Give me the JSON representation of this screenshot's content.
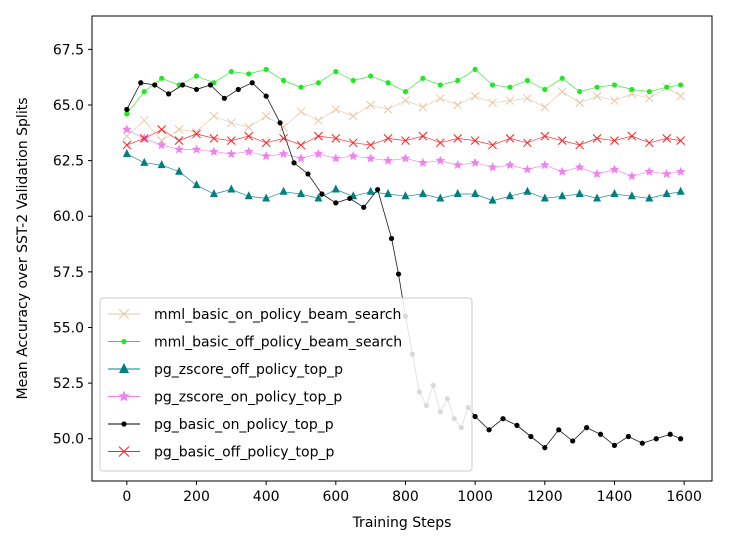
{
  "chart_data": {
    "type": "line",
    "title": "",
    "xlabel": "Training Steps",
    "ylabel": "Mean Accuracy over SST-2 Validation Splits",
    "xlim": [
      -100,
      1680
    ],
    "ylim": [
      48.1,
      69.0
    ],
    "xticks": [
      0,
      200,
      400,
      600,
      800,
      1000,
      1200,
      1400,
      1600
    ],
    "yticks": [
      50.0,
      52.5,
      55.0,
      57.5,
      60.0,
      62.5,
      65.0,
      67.5
    ],
    "ytick_labels": [
      "50.0",
      "52.5",
      "55.0",
      "57.5",
      "60.0",
      "62.5",
      "65.0",
      "67.5"
    ],
    "grid": false,
    "legend_position": "lower-left",
    "series": [
      {
        "name": "mml_basic_on_policy_beam_search",
        "color": "#e6c8a8",
        "marker": "x",
        "x": [
          0,
          50,
          100,
          150,
          200,
          250,
          300,
          350,
          400,
          450,
          500,
          550,
          600,
          650,
          700,
          750,
          800,
          850,
          900,
          950,
          1000,
          1050,
          1100,
          1150,
          1200,
          1250,
          1300,
          1350,
          1400,
          1450,
          1500,
          1550,
          1590
        ],
        "values": [
          63.6,
          64.3,
          63.4,
          63.9,
          63.8,
          64.5,
          64.2,
          64.0,
          64.5,
          64.0,
          64.7,
          64.3,
          64.8,
          64.5,
          65.0,
          64.8,
          65.2,
          64.9,
          65.3,
          65.0,
          65.4,
          65.1,
          65.2,
          65.3,
          64.9,
          65.6,
          65.1,
          65.4,
          65.2,
          65.5,
          65.3,
          65.8,
          65.4
        ]
      },
      {
        "name": "mml_basic_off_policy_beam_search",
        "color": "#22e822",
        "marker": "dot",
        "x": [
          0,
          50,
          100,
          150,
          200,
          250,
          300,
          350,
          400,
          450,
          500,
          550,
          600,
          650,
          700,
          750,
          800,
          850,
          900,
          950,
          1000,
          1050,
          1100,
          1150,
          1200,
          1250,
          1300,
          1350,
          1400,
          1450,
          1500,
          1550,
          1590
        ],
        "values": [
          64.6,
          65.6,
          66.2,
          65.9,
          66.3,
          66.0,
          66.5,
          66.4,
          66.6,
          66.1,
          65.8,
          66.0,
          66.5,
          66.1,
          66.3,
          66.0,
          65.6,
          66.2,
          65.9,
          66.1,
          66.6,
          65.9,
          65.8,
          66.1,
          65.7,
          66.2,
          65.6,
          65.8,
          65.9,
          65.7,
          65.6,
          65.8,
          65.9
        ]
      },
      {
        "name": "pg_zscore_off_policy_top_p",
        "color": "#008080",
        "marker": "triangle",
        "x": [
          0,
          50,
          100,
          150,
          200,
          250,
          300,
          350,
          400,
          450,
          500,
          550,
          600,
          650,
          700,
          750,
          800,
          850,
          900,
          950,
          1000,
          1050,
          1100,
          1150,
          1200,
          1250,
          1300,
          1350,
          1400,
          1450,
          1500,
          1550,
          1590
        ],
        "values": [
          62.8,
          62.4,
          62.3,
          62.0,
          61.4,
          61.0,
          61.2,
          60.9,
          60.8,
          61.1,
          61.0,
          60.8,
          61.2,
          60.9,
          61.1,
          61.0,
          60.9,
          61.0,
          60.8,
          61.0,
          61.0,
          60.7,
          60.9,
          61.1,
          60.8,
          60.9,
          61.0,
          60.8,
          61.0,
          60.9,
          60.8,
          61.0,
          61.1
        ]
      },
      {
        "name": "pg_zscore_on_policy_top_p",
        "color": "#ee82ee",
        "marker": "star",
        "x": [
          0,
          50,
          100,
          150,
          200,
          250,
          300,
          350,
          400,
          450,
          500,
          550,
          600,
          650,
          700,
          750,
          800,
          850,
          900,
          950,
          1000,
          1050,
          1100,
          1150,
          1200,
          1250,
          1300,
          1350,
          1400,
          1450,
          1500,
          1550,
          1590
        ],
        "values": [
          63.9,
          63.5,
          63.2,
          63.0,
          63.0,
          62.9,
          62.8,
          62.9,
          62.7,
          62.8,
          62.6,
          62.8,
          62.6,
          62.7,
          62.6,
          62.5,
          62.6,
          62.4,
          62.5,
          62.3,
          62.4,
          62.2,
          62.3,
          62.1,
          62.3,
          62.0,
          62.2,
          61.9,
          62.1,
          61.8,
          62.0,
          61.9,
          62.0
        ]
      },
      {
        "name": "pg_basic_on_policy_top_p",
        "color": "#000000",
        "marker": "dot",
        "x": [
          0,
          40,
          80,
          120,
          160,
          200,
          240,
          280,
          320,
          360,
          400,
          440,
          480,
          520,
          560,
          600,
          640,
          680,
          720,
          760,
          780,
          800,
          820,
          840,
          860,
          880,
          900,
          920,
          940,
          960,
          980,
          1000,
          1040,
          1080,
          1120,
          1160,
          1200,
          1240,
          1280,
          1320,
          1360,
          1400,
          1440,
          1480,
          1520,
          1560,
          1590
        ],
        "values": [
          64.8,
          66.0,
          65.9,
          65.5,
          65.9,
          65.7,
          65.9,
          65.3,
          65.7,
          66.0,
          65.4,
          64.2,
          62.4,
          61.9,
          61.0,
          60.6,
          60.8,
          60.4,
          61.2,
          59.0,
          57.4,
          55.5,
          53.8,
          52.1,
          51.5,
          52.4,
          51.2,
          51.8,
          50.9,
          50.5,
          51.4,
          51.0,
          50.4,
          50.9,
          50.6,
          50.1,
          49.6,
          50.4,
          49.9,
          50.5,
          50.2,
          49.7,
          50.1,
          49.8,
          50.0,
          50.2,
          50.0
        ]
      },
      {
        "name": "pg_basic_off_policy_top_p",
        "color": "#ff2020",
        "marker": "x",
        "x": [
          0,
          50,
          100,
          150,
          200,
          250,
          300,
          350,
          400,
          450,
          500,
          550,
          600,
          650,
          700,
          750,
          800,
          850,
          900,
          950,
          1000,
          1050,
          1100,
          1150,
          1200,
          1250,
          1300,
          1350,
          1400,
          1450,
          1500,
          1550,
          1590
        ],
        "values": [
          63.2,
          63.5,
          63.9,
          63.4,
          63.7,
          63.5,
          63.4,
          63.6,
          63.3,
          63.5,
          63.2,
          63.6,
          63.5,
          63.3,
          63.2,
          63.5,
          63.4,
          63.6,
          63.3,
          63.5,
          63.4,
          63.2,
          63.5,
          63.3,
          63.6,
          63.4,
          63.2,
          63.5,
          63.4,
          63.6,
          63.3,
          63.5,
          63.4
        ]
      }
    ]
  }
}
